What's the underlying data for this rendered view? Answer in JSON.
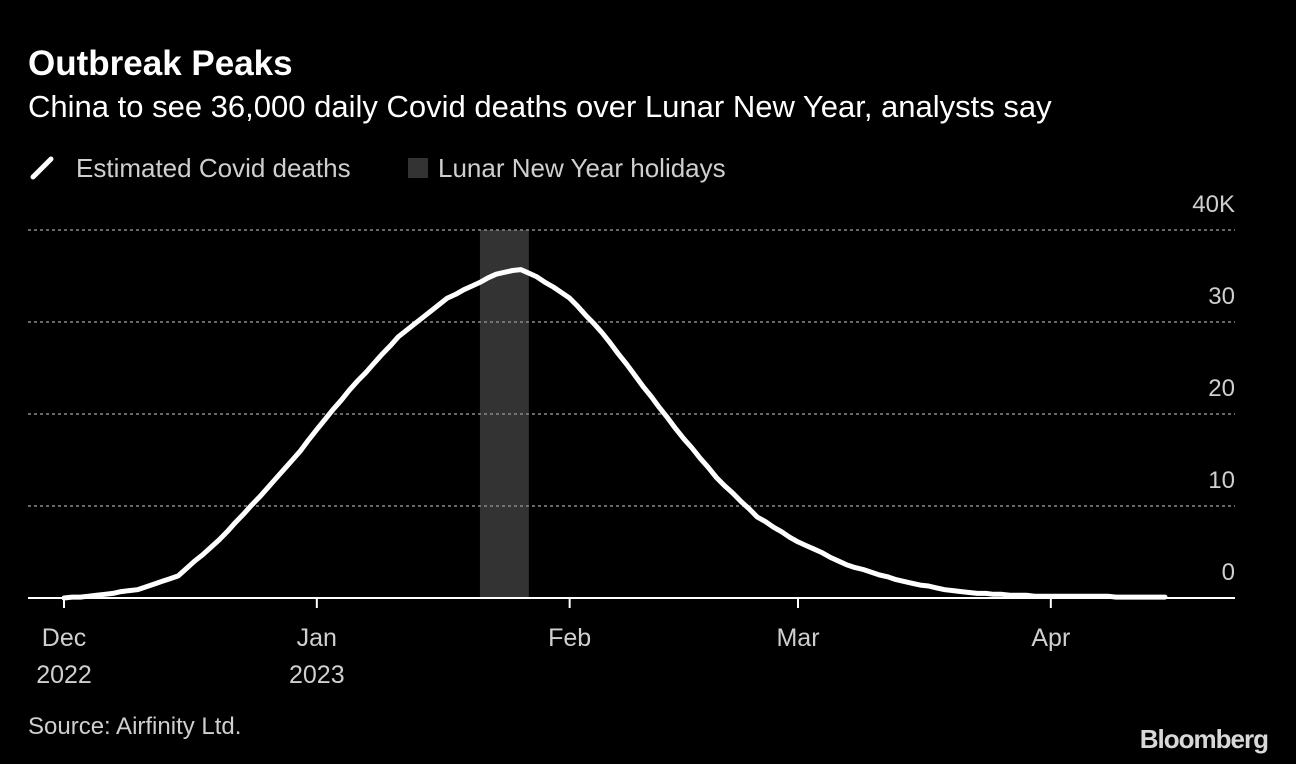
{
  "chart_data": {
    "type": "line",
    "title": "Outbreak Peaks",
    "subtitle": "China to see 36,000 daily Covid deaths over Lunar New Year, analysts say",
    "source": "Source: Airfinity Ltd.",
    "brand": "Bloomberg",
    "categories": [
      "Dec 2022",
      null,
      null,
      null,
      null,
      null,
      null,
      null,
      null,
      null,
      null,
      null,
      null,
      null,
      null,
      null,
      null,
      null,
      null,
      null,
      null,
      null,
      null,
      null,
      null,
      null,
      null,
      null,
      null,
      null,
      null,
      "Jan 2023",
      null,
      null,
      null,
      null,
      null,
      null,
      null,
      null,
      null,
      null,
      null,
      null,
      null,
      null,
      null,
      null,
      null,
      null,
      null,
      null,
      null,
      null,
      null,
      null,
      null,
      null,
      null,
      null,
      null,
      null,
      "Feb",
      null,
      null,
      null,
      null,
      null,
      null,
      null,
      null,
      null,
      null,
      null,
      null,
      null,
      null,
      null,
      null,
      null,
      null,
      null,
      null,
      null,
      null,
      null,
      null,
      null,
      null,
      null,
      "Mar",
      null,
      null,
      null,
      null,
      null,
      null,
      null,
      null,
      null,
      null,
      null,
      null,
      null,
      null,
      null,
      null,
      null,
      null,
      null,
      null,
      null,
      null,
      null,
      null,
      null,
      null,
      null,
      null,
      null,
      null,
      "Apr",
      null,
      null,
      null,
      null,
      null,
      null,
      null,
      null,
      null,
      null,
      null,
      null,
      null,
      null
    ],
    "series": [
      {
        "name": "Estimated Covid deaths",
        "color": "#ffffff",
        "values": [
          0,
          0.1,
          0.1,
          0.2,
          0.3,
          0.4,
          0.5,
          0.7,
          0.8,
          0.9,
          1.2,
          1.5,
          1.8,
          2.1,
          2.4,
          3.2,
          4.0,
          4.7,
          5.5,
          6.3,
          7.2,
          8.2,
          9.1,
          10.1,
          11.0,
          12.0,
          13.0,
          14.0,
          15.0,
          16.0,
          17.2,
          18.3,
          19.4,
          20.5,
          21.5,
          22.6,
          23.6,
          24.5,
          25.5,
          26.5,
          27.4,
          28.4,
          29.1,
          29.8,
          30.5,
          31.2,
          31.9,
          32.6,
          33.0,
          33.5,
          33.9,
          34.3,
          34.8,
          35.2,
          35.4,
          35.6,
          35.7,
          35.3,
          34.9,
          34.3,
          33.8,
          33.2,
          32.6,
          31.7,
          30.7,
          29.8,
          28.8,
          27.7,
          26.5,
          25.4,
          24.2,
          23.0,
          21.9,
          20.7,
          19.6,
          18.4,
          17.3,
          16.3,
          15.2,
          14.2,
          13.1,
          12.2,
          11.4,
          10.5,
          9.7,
          8.8,
          8.3,
          7.7,
          7.2,
          6.6,
          6.1,
          5.7,
          5.3,
          4.9,
          4.4,
          4.0,
          3.6,
          3.3,
          3.1,
          2.8,
          2.5,
          2.3,
          2.0,
          1.8,
          1.6,
          1.4,
          1.3,
          1.1,
          0.9,
          0.8,
          0.7,
          0.6,
          0.5,
          0.5,
          0.4,
          0.4,
          0.3,
          0.3,
          0.3,
          0.2,
          0.2,
          0.2,
          0.2,
          0.2,
          0.2,
          0.2,
          0.2,
          0.2,
          0.2,
          0.1,
          0.1,
          0.1,
          0.1,
          0.1,
          0.1,
          0.1
        ]
      }
    ],
    "highlight": {
      "name": "Lunar New Year holidays",
      "color": "#333333",
      "from": 51,
      "to": 57
    },
    "ylim": [
      0,
      40
    ],
    "yticks": [
      0,
      10,
      20,
      30,
      {
        "value": 40,
        "label": "40K"
      }
    ],
    "grid": true
  }
}
